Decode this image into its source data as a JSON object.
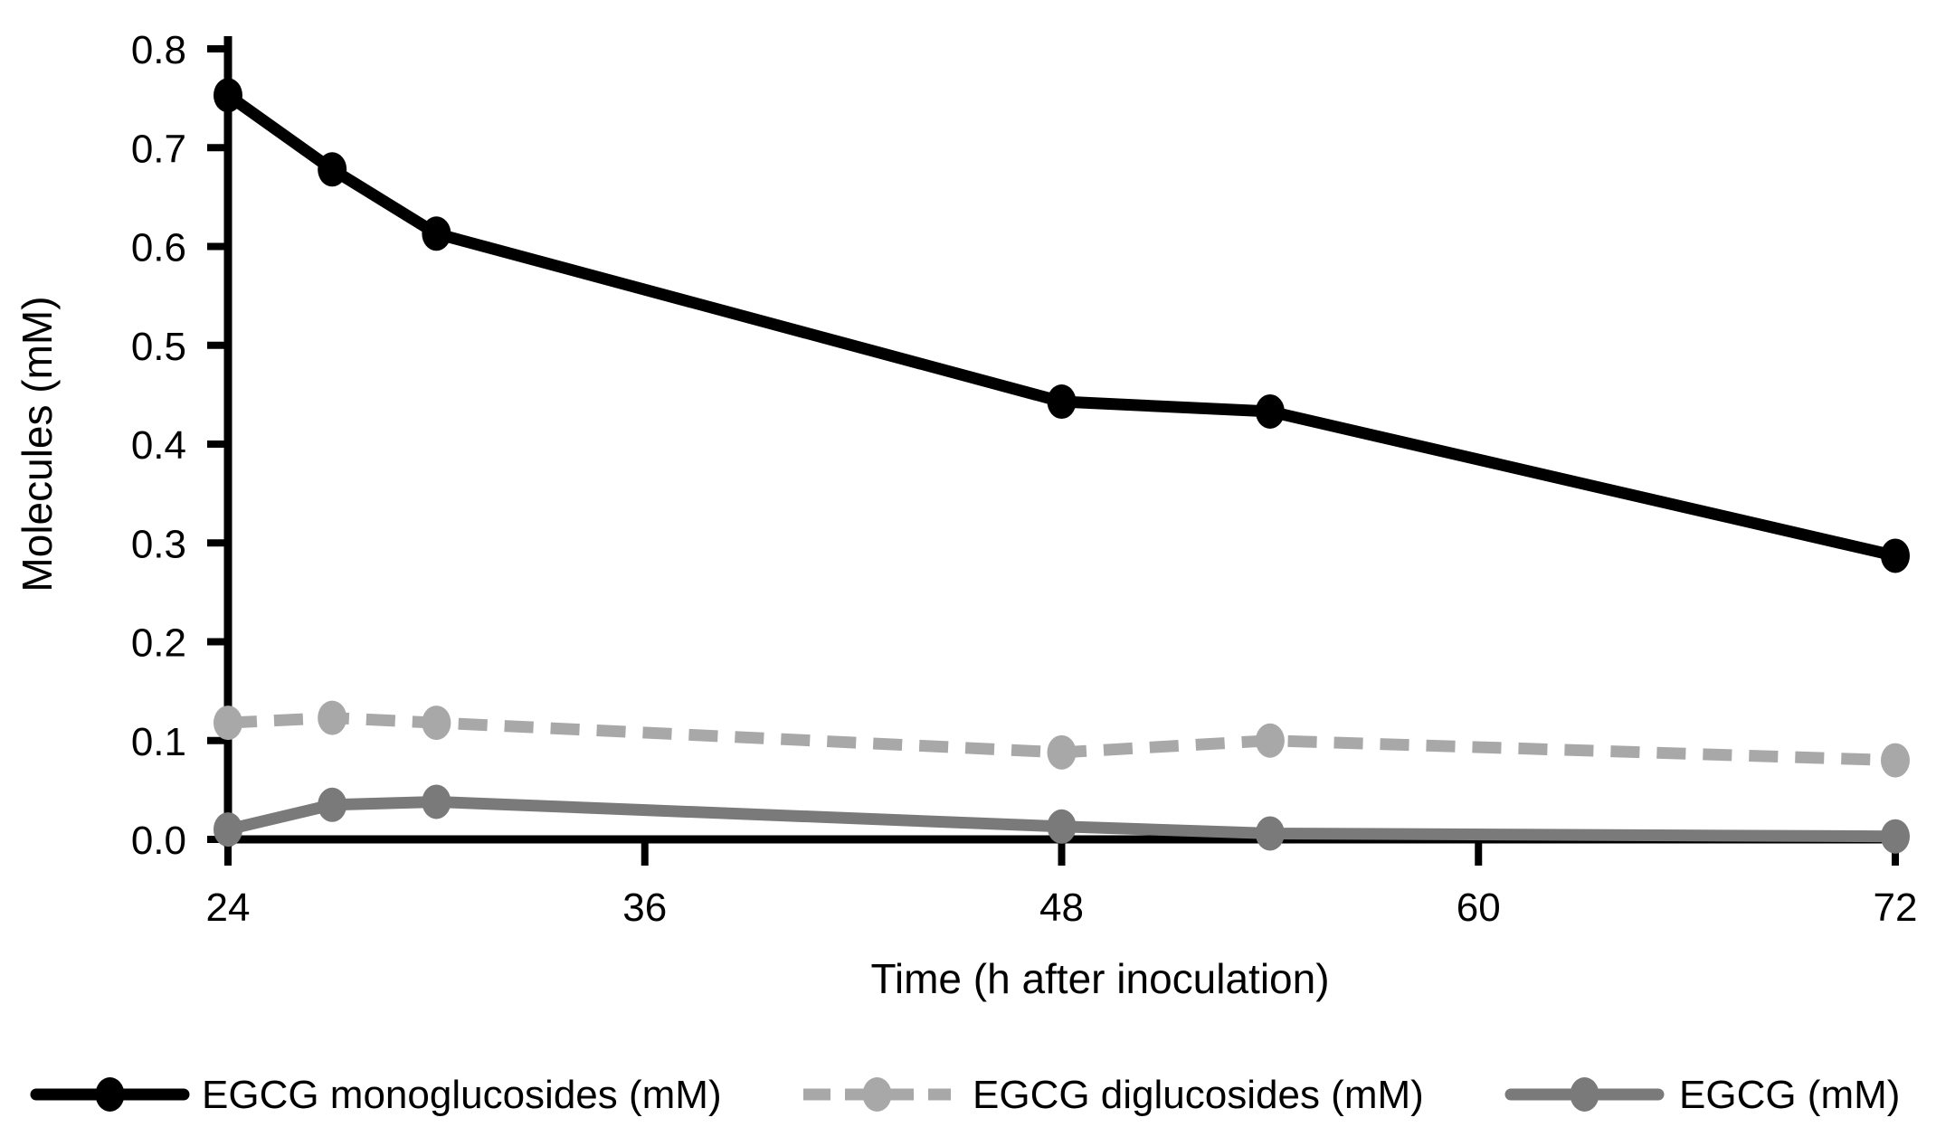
{
  "chart_data": {
    "type": "line",
    "title": "",
    "xlabel": "Time (h after inoculation)",
    "ylabel": "Molecules (mM)",
    "x": [
      24,
      27,
      30,
      48,
      54,
      72
    ],
    "series": [
      {
        "name": "EGCG monoglucosides (mM)",
        "color": "#000000",
        "line_style": "solid",
        "marker": "circle",
        "values": [
          0.753,
          0.678,
          0.613,
          0.443,
          0.433,
          0.287
        ]
      },
      {
        "name": "EGCG diglucosides (mM)",
        "color": "#a8a8a8",
        "line_style": "dashed",
        "marker": "circle",
        "values": [
          0.118,
          0.123,
          0.118,
          0.088,
          0.1,
          0.08
        ]
      },
      {
        "name": "EGCG (mM)",
        "color": "#7a7a7a",
        "line_style": "solid",
        "marker": "circle",
        "values": [
          0.01,
          0.035,
          0.038,
          0.013,
          0.006,
          0.003
        ]
      }
    ],
    "xlim": [
      24,
      72
    ],
    "ylim": [
      0,
      0.8
    ],
    "xticks": [
      24,
      36,
      48,
      60,
      72
    ],
    "xtick_labels": [
      "24",
      "36",
      "48",
      "60",
      "72"
    ],
    "yticks": [
      0,
      0.1,
      0.2,
      0.3,
      0.4,
      0.5,
      0.6,
      0.7,
      0.8
    ],
    "ytick_labels": [
      "0.0",
      "0.1",
      "0.2",
      "0.3",
      "0.4",
      "0.5",
      "0.6",
      "0.7",
      "0.8"
    ],
    "grid": false,
    "legend_position": "bottom"
  }
}
